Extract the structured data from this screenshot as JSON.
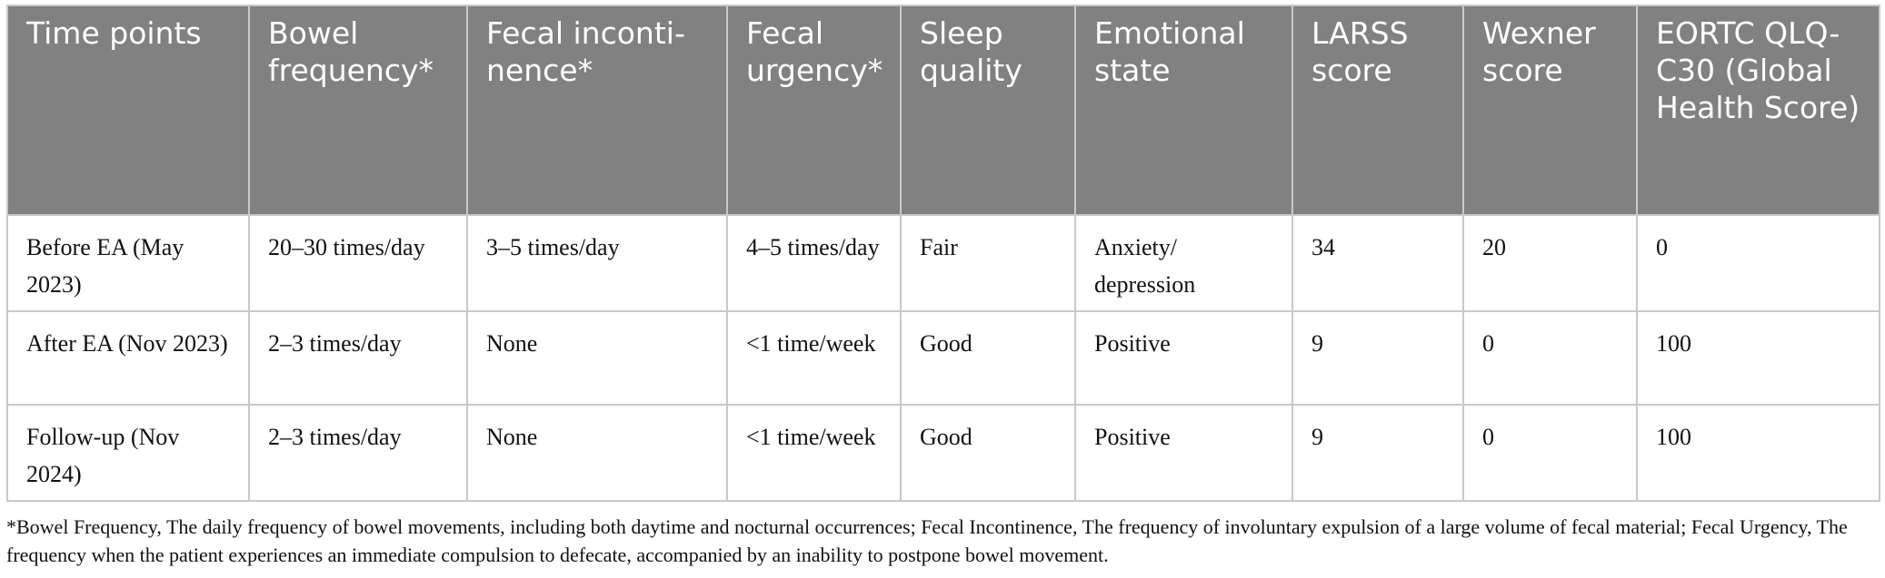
{
  "table": {
    "headers": [
      "Time points",
      "Bowel frequency*",
      "Fecal inconti-nence*",
      "Fecal urgency*",
      "Sleep quality",
      "Emotional state",
      "LARSS score",
      "Wexner score",
      "EORTC QLQ-C30 (Global Health Score)"
    ],
    "rows": [
      [
        "Before EA (May 2023)",
        "20–30 times/day",
        "3–5 times/day",
        "4–5 times/day",
        "Fair",
        "Anxiety/ depression",
        "34",
        "20",
        "0"
      ],
      [
        "After EA (Nov 2023)",
        "2–3 times/day",
        "None",
        "<1 time/week",
        "Good",
        "Positive",
        "9",
        "0",
        "100"
      ],
      [
        "Follow-up (Nov 2024)",
        "2–3 times/day",
        "None",
        "<1 time/week",
        "Good",
        "Positive",
        "9",
        "0",
        "100"
      ]
    ]
  },
  "footnote": "*Bowel Frequency, The daily frequency of bowel movements, including both daytime and nocturnal occurrences; Fecal Incontinence, The frequency of involuntary expulsion of a large volume of fecal material; Fecal Urgency, The frequency when the patient experiences an immediate compulsion to defecate, accompanied by an inability to postpone bowel movement.",
  "colors": {
    "header_bg": "#818181",
    "header_text": "#ffffff",
    "border": "#c9c9c9",
    "body_text": "#111111"
  }
}
